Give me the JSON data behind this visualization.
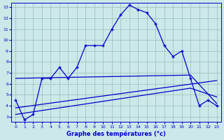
{
  "main_x": [
    0,
    1,
    2,
    3,
    4,
    5,
    6,
    7,
    8,
    9,
    10,
    11,
    12,
    13,
    14,
    15,
    16,
    17,
    18,
    19,
    20,
    21,
    22,
    23
  ],
  "main_y": [
    4.5,
    2.7,
    3.2,
    6.5,
    6.5,
    7.5,
    6.5,
    7.5,
    9.5,
    9.5,
    9.5,
    11.0,
    12.3,
    13.2,
    12.8,
    12.5,
    11.5,
    9.5,
    8.5,
    9.0,
    6.5,
    4.0,
    4.5,
    4.0
  ],
  "line1_x": [
    0,
    20,
    23
  ],
  "line1_y": [
    6.5,
    6.8,
    4.2
  ],
  "line2_x": [
    0,
    23
  ],
  "line2_y": [
    3.8,
    6.3
  ],
  "line3_x": [
    0,
    20,
    23
  ],
  "line3_y": [
    3.2,
    5.6,
    4.8
  ],
  "xlabel": "Graphe des températures (°c)",
  "xlim_min": -0.5,
  "xlim_max": 23.5,
  "ylim_min": 2.5,
  "ylim_max": 13.4,
  "yticks": [
    3,
    4,
    5,
    6,
    7,
    8,
    9,
    10,
    11,
    12,
    13
  ],
  "xticks": [
    0,
    1,
    2,
    3,
    4,
    5,
    6,
    7,
    8,
    9,
    10,
    11,
    12,
    13,
    14,
    15,
    16,
    17,
    18,
    19,
    20,
    21,
    22,
    23
  ],
  "line_color": "#0000cc",
  "bg_color": "#cce8e8",
  "grid_color": "#99bbbb",
  "xlabel_color": "#0000cc"
}
